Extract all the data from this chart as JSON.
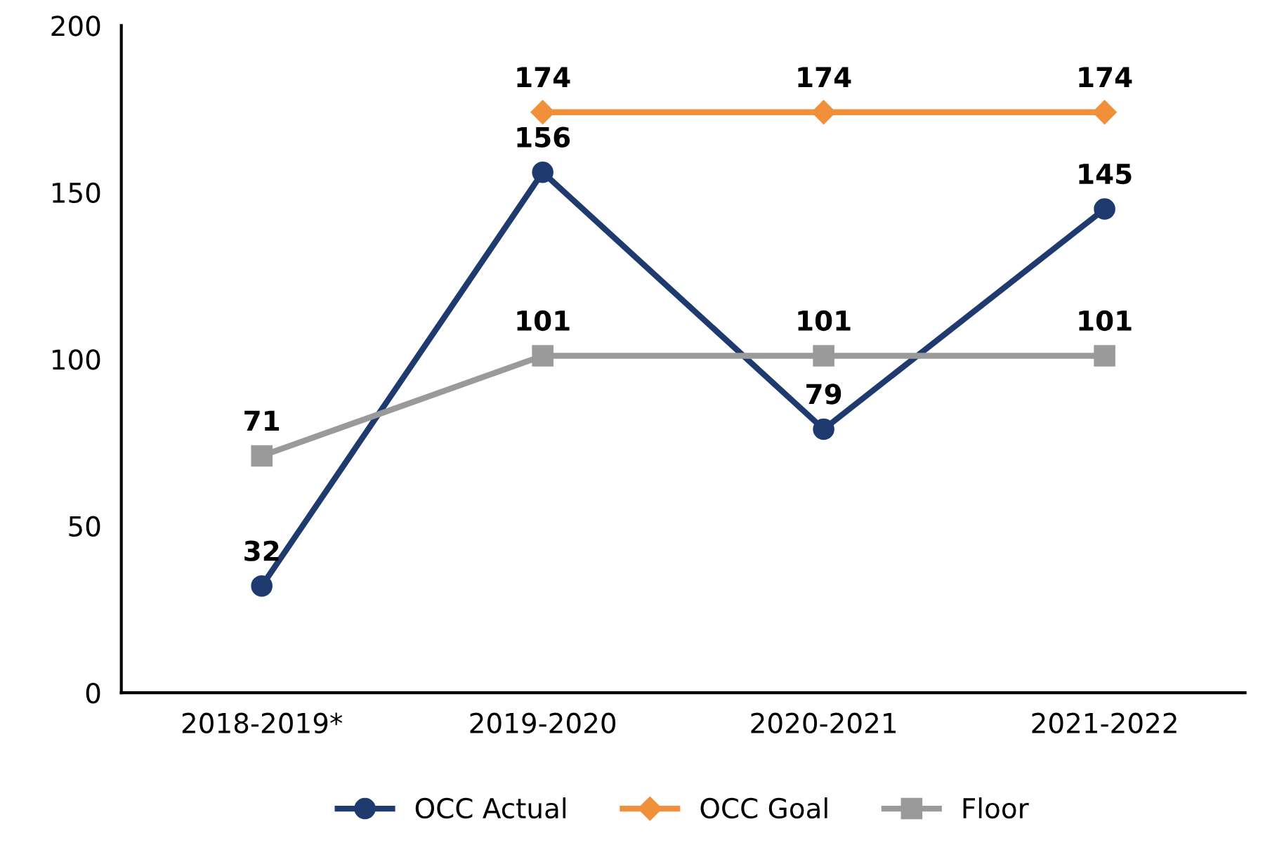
{
  "chart_data": {
    "type": "line",
    "categories": [
      "2018-2019*",
      "2019-2020",
      "2020-2021",
      "2021-2022"
    ],
    "series": [
      {
        "name": "OCC Actual",
        "color": "#1f3a6e",
        "marker": "circle",
        "values": [
          32,
          156,
          79,
          145
        ]
      },
      {
        "name": "OCC Goal",
        "color": "#f0903a",
        "marker": "diamond",
        "values": [
          null,
          174,
          174,
          174
        ]
      },
      {
        "name": "Floor",
        "color": "#9a9a9a",
        "marker": "square",
        "values": [
          71,
          101,
          101,
          101
        ]
      }
    ],
    "ylim": [
      0,
      200
    ],
    "yticks": [
      0,
      50,
      100,
      150,
      200
    ],
    "grid": false,
    "legend": "bottom",
    "data_labels": true,
    "line_style": "solid"
  }
}
